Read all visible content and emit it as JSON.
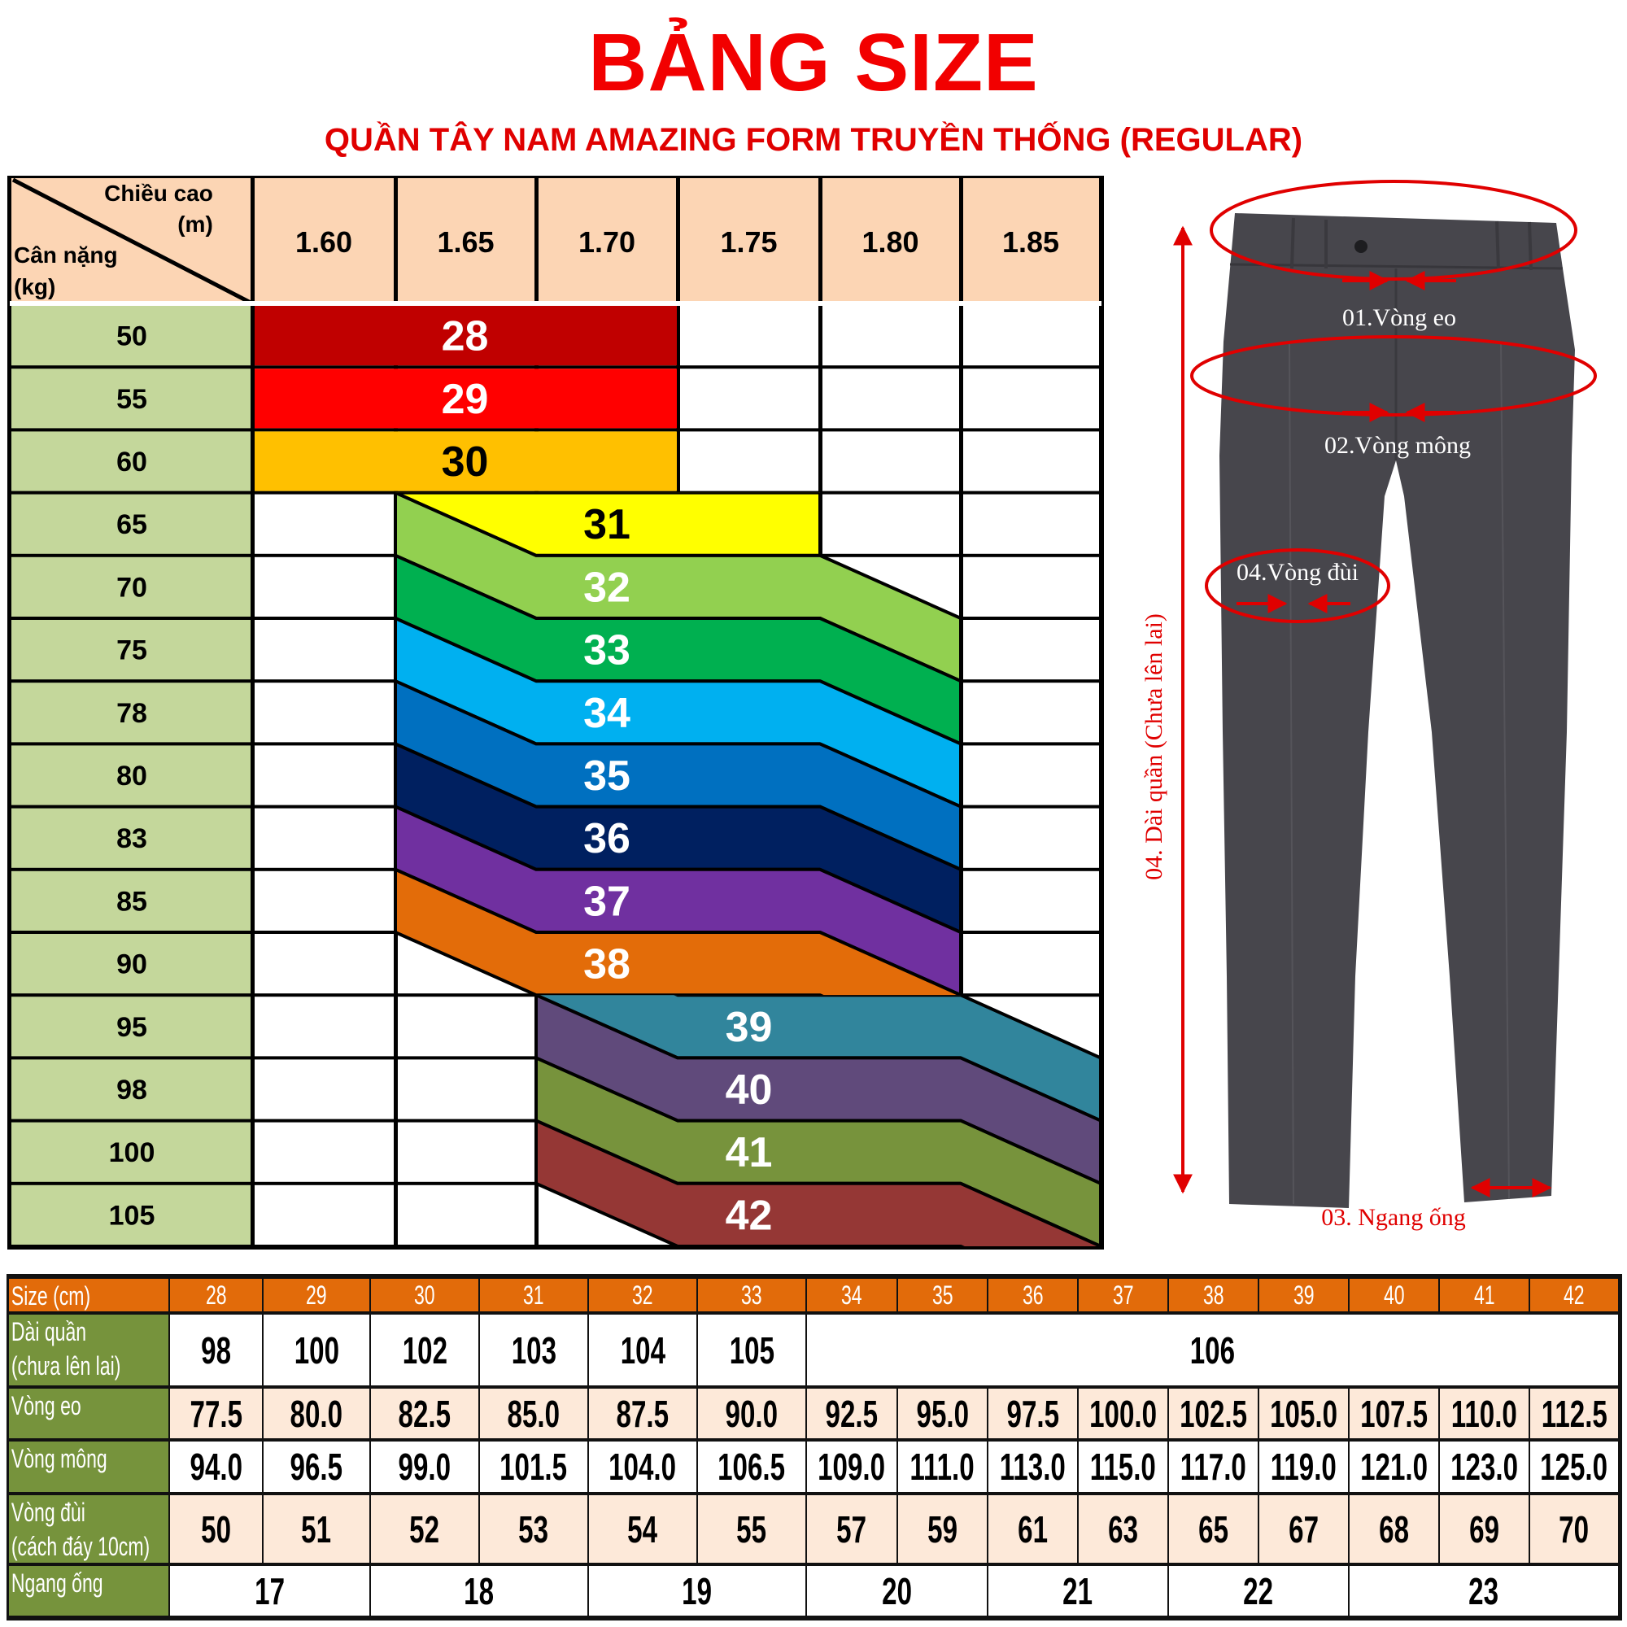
{
  "title": "BẢNG SIZE",
  "subtitle": "QUẦN TÂY NAM AMAZING FORM TRUYỀN THỐNG (REGULAR)",
  "top_table": {
    "corner_height_label": "Chiều cao",
    "corner_height_unit": "(m)",
    "corner_weight_label": "Cân nặng",
    "corner_weight_unit": "(kg)",
    "heights": [
      "1.60",
      "1.65",
      "1.70",
      "1.75",
      "1.80",
      "1.85"
    ],
    "weights": [
      "50",
      "55",
      "60",
      "65",
      "70",
      "75",
      "78",
      "80",
      "83",
      "85",
      "90",
      "95",
      "98",
      "100",
      "105"
    ],
    "colors": {
      "header_bg": "#FCD5B4",
      "weight_bg": "#C4D79B"
    },
    "sizes": [
      {
        "label": "28",
        "color": "#C00000",
        "text_color": "#FFFFFF"
      },
      {
        "label": "29",
        "color": "#FF0000",
        "text_color": "#FFFFFF"
      },
      {
        "label": "30",
        "color": "#FFC000",
        "text_color": "#000000"
      },
      {
        "label": "31",
        "color": "#FFFF00",
        "text_color": "#000000"
      },
      {
        "label": "32",
        "color": "#92D050",
        "text_color": "#FFFFFF"
      },
      {
        "label": "33",
        "color": "#00B050",
        "text_color": "#FFFFFF"
      },
      {
        "label": "34",
        "color": "#00B0F0",
        "text_color": "#FFFFFF"
      },
      {
        "label": "35",
        "color": "#0070C0",
        "text_color": "#FFFFFF"
      },
      {
        "label": "36",
        "color": "#002060",
        "text_color": "#FFFFFF"
      },
      {
        "label": "37",
        "color": "#7030A0",
        "text_color": "#FFFFFF"
      },
      {
        "label": "38",
        "color": "#E36C09",
        "text_color": "#FFFFFF"
      },
      {
        "label": "39",
        "color": "#31859C",
        "text_color": "#FFFFFF"
      },
      {
        "label": "40",
        "color": "#604A7B",
        "text_color": "#FFFFFF"
      },
      {
        "label": "41",
        "color": "#77933C",
        "text_color": "#FFFFFF"
      },
      {
        "label": "42",
        "color": "#953735",
        "text_color": "#FFFFFF"
      }
    ]
  },
  "pants": {
    "waist_label": "01.Vòng eo",
    "hip_label": "02.Vòng mông",
    "hem_label": "03. Ngang ống",
    "thigh_label": "04.Vòng đùi",
    "length_label": "04. Dài quần (Chưa lên lai)",
    "annotation_color": "#E00000",
    "fabric_color": "#47464C"
  },
  "measure_table": {
    "colors": {
      "header_bg": "#E26B0A",
      "label_bg": "#76933C",
      "alt_row_bg": "#FDE9D9"
    },
    "header_label": "Size (cm)",
    "sizes": [
      "28",
      "29",
      "30",
      "31",
      "32",
      "33",
      "34",
      "35",
      "36",
      "37",
      "38",
      "39",
      "40",
      "41",
      "42"
    ],
    "rows": [
      {
        "label": [
          "Dài quần",
          "(chưa lên lai)"
        ],
        "cells": [
          {
            "v": "98",
            "span": 1
          },
          {
            "v": "100",
            "span": 1
          },
          {
            "v": "102",
            "span": 1
          },
          {
            "v": "103",
            "span": 1
          },
          {
            "v": "104",
            "span": 1
          },
          {
            "v": "105",
            "span": 1
          },
          {
            "v": "106",
            "span": 9
          }
        ],
        "shaded": false
      },
      {
        "label": [
          "Vòng eo"
        ],
        "cells": [
          {
            "v": "77.5",
            "span": 1
          },
          {
            "v": "80.0",
            "span": 1
          },
          {
            "v": "82.5",
            "span": 1
          },
          {
            "v": "85.0",
            "span": 1
          },
          {
            "v": "87.5",
            "span": 1
          },
          {
            "v": "90.0",
            "span": 1
          },
          {
            "v": "92.5",
            "span": 1
          },
          {
            "v": "95.0",
            "span": 1
          },
          {
            "v": "97.5",
            "span": 1
          },
          {
            "v": "100.0",
            "span": 1
          },
          {
            "v": "102.5",
            "span": 1
          },
          {
            "v": "105.0",
            "span": 1
          },
          {
            "v": "107.5",
            "span": 1
          },
          {
            "v": "110.0",
            "span": 1
          },
          {
            "v": "112.5",
            "span": 1
          }
        ],
        "shaded": true
      },
      {
        "label": [
          "Vòng mông"
        ],
        "cells": [
          {
            "v": "94.0",
            "span": 1
          },
          {
            "v": "96.5",
            "span": 1
          },
          {
            "v": "99.0",
            "span": 1
          },
          {
            "v": "101.5",
            "span": 1
          },
          {
            "v": "104.0",
            "span": 1
          },
          {
            "v": "106.5",
            "span": 1
          },
          {
            "v": "109.0",
            "span": 1
          },
          {
            "v": "111.0",
            "span": 1
          },
          {
            "v": "113.0",
            "span": 1
          },
          {
            "v": "115.0",
            "span": 1
          },
          {
            "v": "117.0",
            "span": 1
          },
          {
            "v": "119.0",
            "span": 1
          },
          {
            "v": "121.0",
            "span": 1
          },
          {
            "v": "123.0",
            "span": 1
          },
          {
            "v": "125.0",
            "span": 1
          }
        ],
        "shaded": false
      },
      {
        "label": [
          "Vòng đùi",
          "(cách đáy 10cm)"
        ],
        "cells": [
          {
            "v": "50",
            "span": 1
          },
          {
            "v": "51",
            "span": 1
          },
          {
            "v": "52",
            "span": 1
          },
          {
            "v": "53",
            "span": 1
          },
          {
            "v": "54",
            "span": 1
          },
          {
            "v": "55",
            "span": 1
          },
          {
            "v": "57",
            "span": 1
          },
          {
            "v": "59",
            "span": 1
          },
          {
            "v": "61",
            "span": 1
          },
          {
            "v": "63",
            "span": 1
          },
          {
            "v": "65",
            "span": 1
          },
          {
            "v": "67",
            "span": 1
          },
          {
            "v": "68",
            "span": 1
          },
          {
            "v": "69",
            "span": 1
          },
          {
            "v": "70",
            "span": 1
          }
        ],
        "shaded": true
      },
      {
        "label": [
          "Ngang ống"
        ],
        "cells": [
          {
            "v": "17",
            "span": 2
          },
          {
            "v": "18",
            "span": 2
          },
          {
            "v": "19",
            "span": 2
          },
          {
            "v": "20",
            "span": 2
          },
          {
            "v": "21",
            "span": 2
          },
          {
            "v": "22",
            "span": 2
          },
          {
            "v": "23",
            "span": 3
          }
        ],
        "shaded": false
      }
    ]
  }
}
